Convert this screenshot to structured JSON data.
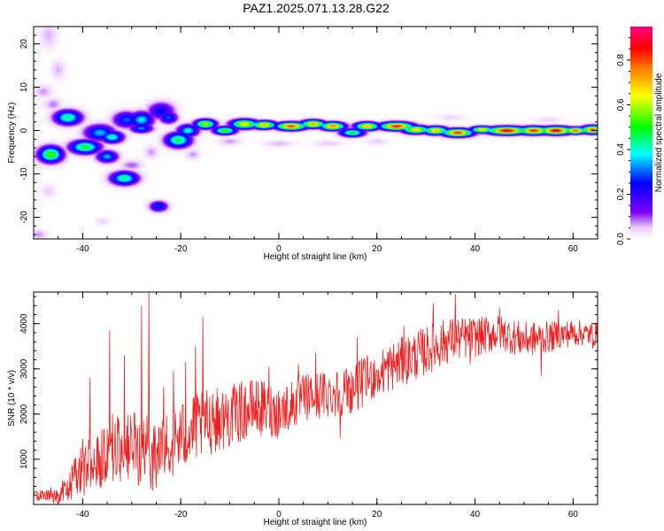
{
  "title": "PAZ1.2025.071.13.28.G22",
  "chart_data": [
    {
      "type": "heatmap",
      "xlabel": "Height of straight line (km)",
      "ylabel": "Frequency (Hz)",
      "xlim": [
        -50,
        65
      ],
      "ylim": [
        -25,
        24
      ],
      "xticks": [
        "-40",
        "-20",
        "0",
        "20",
        "40",
        "60"
      ],
      "yticks": [
        "-20",
        "-10",
        "0",
        "10",
        "20"
      ],
      "colorbar": {
        "label": "Normalized spectral amplitude",
        "range": [
          0,
          0.95
        ],
        "ticks": [
          "0.0",
          "0.2",
          "0.4",
          "0.6",
          "0.8"
        ],
        "colors": [
          "#ffffff",
          "#8000ff",
          "#0000ff",
          "#00ffff",
          "#00ff00",
          "#ffff00",
          "#ff8000",
          "#ff0000",
          "#ff0080"
        ]
      },
      "blobs": [
        {
          "x": -46.5,
          "y": -5.5,
          "sx": 1.6,
          "sy": 1.2,
          "a": 0.55
        },
        {
          "x": -43,
          "y": 3,
          "sx": 1.8,
          "sy": 1.1,
          "a": 0.45
        },
        {
          "x": -39.5,
          "y": -3.8,
          "sx": 2.0,
          "sy": 1.0,
          "a": 0.5
        },
        {
          "x": -36.5,
          "y": -0.5,
          "sx": 2.0,
          "sy": 1.2,
          "a": 0.35
        },
        {
          "x": -35,
          "y": -6,
          "sx": 1.4,
          "sy": 0.9,
          "a": 0.35
        },
        {
          "x": -34,
          "y": -1.5,
          "sx": 1.5,
          "sy": 0.9,
          "a": 0.42
        },
        {
          "x": -31.5,
          "y": -11,
          "sx": 1.8,
          "sy": 1.0,
          "a": 0.45
        },
        {
          "x": -31,
          "y": 2.5,
          "sx": 1.8,
          "sy": 1.2,
          "a": 0.3
        },
        {
          "x": -28,
          "y": 2.5,
          "sx": 1.6,
          "sy": 1.2,
          "a": 0.38
        },
        {
          "x": -28,
          "y": 0.5,
          "sx": 1.5,
          "sy": 0.7,
          "a": 0.32
        },
        {
          "x": -24.5,
          "y": -17.5,
          "sx": 1.2,
          "sy": 0.8,
          "a": 0.28
        },
        {
          "x": -24,
          "y": 4.5,
          "sx": 1.8,
          "sy": 1.3,
          "a": 0.25
        },
        {
          "x": -22.5,
          "y": 3,
          "sx": 1.2,
          "sy": 0.9,
          "a": 0.3
        },
        {
          "x": -20.5,
          "y": -2.2,
          "sx": 1.7,
          "sy": 1.1,
          "a": 0.48
        },
        {
          "x": -18.5,
          "y": 0,
          "sx": 1.4,
          "sy": 0.9,
          "a": 0.4
        },
        {
          "x": -15,
          "y": 1.5,
          "sx": 1.4,
          "sy": 0.7,
          "a": 0.62
        },
        {
          "x": -11,
          "y": 0,
          "sx": 1.5,
          "sy": 0.6,
          "a": 0.55
        },
        {
          "x": -7,
          "y": 1.5,
          "sx": 1.8,
          "sy": 0.7,
          "a": 0.68
        },
        {
          "x": -3,
          "y": 1.3,
          "sx": 1.6,
          "sy": 0.6,
          "a": 0.72
        },
        {
          "x": 2.5,
          "y": 1,
          "sx": 2.0,
          "sy": 0.6,
          "a": 0.82
        },
        {
          "x": 7,
          "y": 1.5,
          "sx": 1.6,
          "sy": 0.6,
          "a": 0.75
        },
        {
          "x": 11,
          "y": 1,
          "sx": 1.6,
          "sy": 0.6,
          "a": 0.78
        },
        {
          "x": 15,
          "y": -0.5,
          "sx": 1.6,
          "sy": 0.6,
          "a": 0.5
        },
        {
          "x": 18,
          "y": 1,
          "sx": 1.6,
          "sy": 0.6,
          "a": 0.72
        },
        {
          "x": 24,
          "y": 1,
          "sx": 2.2,
          "sy": 0.6,
          "a": 0.86
        },
        {
          "x": 28,
          "y": 0.2,
          "sx": 1.8,
          "sy": 0.6,
          "a": 0.7
        },
        {
          "x": 32,
          "y": 0,
          "sx": 1.6,
          "sy": 0.6,
          "a": 0.72
        },
        {
          "x": 36.5,
          "y": -0.5,
          "sx": 2.0,
          "sy": 0.6,
          "a": 0.84
        },
        {
          "x": 41.5,
          "y": 0.2,
          "sx": 1.5,
          "sy": 0.5,
          "a": 0.7
        },
        {
          "x": 46.5,
          "y": 0,
          "sx": 2.6,
          "sy": 0.6,
          "a": 0.9
        },
        {
          "x": 52,
          "y": 0,
          "sx": 2.0,
          "sy": 0.6,
          "a": 0.85
        },
        {
          "x": 56.5,
          "y": 0,
          "sx": 2.2,
          "sy": 0.6,
          "a": 0.9
        },
        {
          "x": 60.5,
          "y": 0,
          "sx": 1.5,
          "sy": 0.5,
          "a": 0.8
        },
        {
          "x": 64,
          "y": 0.2,
          "sx": 1.5,
          "sy": 0.6,
          "a": 0.82
        }
      ],
      "faint": [
        {
          "x": -47,
          "y": 22,
          "sx": 1.2,
          "sy": 2.0,
          "a": 0.06
        },
        {
          "x": -45,
          "y": 14,
          "sx": 1.0,
          "sy": 1.5,
          "a": 0.06
        },
        {
          "x": -48,
          "y": 9,
          "sx": 1.2,
          "sy": 1.0,
          "a": 0.07
        },
        {
          "x": -46,
          "y": 6,
          "sx": 1.2,
          "sy": 1.0,
          "a": 0.08
        },
        {
          "x": -47,
          "y": -14,
          "sx": 1.0,
          "sy": 1.0,
          "a": 0.05
        },
        {
          "x": -49,
          "y": -24,
          "sx": 1.2,
          "sy": 0.8,
          "a": 0.07
        },
        {
          "x": -36,
          "y": -21,
          "sx": 1.0,
          "sy": 0.6,
          "a": 0.04
        },
        {
          "x": -30,
          "y": -8,
          "sx": 1.5,
          "sy": 0.8,
          "a": 0.09
        },
        {
          "x": -26,
          "y": -5,
          "sx": 1.0,
          "sy": 1.0,
          "a": 0.07
        },
        {
          "x": -17.5,
          "y": -5.5,
          "sx": 1.0,
          "sy": 0.8,
          "a": 0.07
        },
        {
          "x": -10,
          "y": -2.5,
          "sx": 1.5,
          "sy": 0.6,
          "a": 0.07
        },
        {
          "x": 0,
          "y": -3,
          "sx": 2.0,
          "sy": 0.5,
          "a": 0.06
        },
        {
          "x": 10,
          "y": -3,
          "sx": 2.0,
          "sy": 0.5,
          "a": 0.05
        },
        {
          "x": 20,
          "y": -2.5,
          "sx": 1.5,
          "sy": 0.5,
          "a": 0.05
        },
        {
          "x": 35,
          "y": 3,
          "sx": 2.0,
          "sy": 0.5,
          "a": 0.04
        },
        {
          "x": 55,
          "y": 2.5,
          "sx": 2.0,
          "sy": 0.5,
          "a": 0.04
        }
      ]
    },
    {
      "type": "line",
      "xlabel": "Height of straight line (km)",
      "ylabel": "SNR (10 * v/v)",
      "xlim": [
        -50,
        65
      ],
      "ylim": [
        0,
        4700
      ],
      "xticks": [
        "-40",
        "-20",
        "0",
        "20",
        "40",
        "60"
      ],
      "yticks": [
        "1000",
        "2000",
        "3000",
        "4000"
      ],
      "color": "#ee2020",
      "trend_x": [
        -50,
        -46,
        -43,
        -40,
        -35,
        -30,
        -25,
        -20,
        -15,
        -10,
        -5,
        0,
        5,
        10,
        15,
        20,
        25,
        30,
        35,
        40,
        45,
        50,
        55,
        60,
        65
      ],
      "trend_y": [
        200,
        180,
        350,
        850,
        1200,
        1250,
        1100,
        1500,
        1800,
        1950,
        2150,
        2050,
        2350,
        2450,
        2550,
        2900,
        3150,
        3400,
        3650,
        3700,
        3800,
        3650,
        3700,
        3800,
        3750
      ],
      "amp_y": [
        100,
        150,
        300,
        700,
        800,
        800,
        850,
        800,
        750,
        700,
        650,
        600,
        550,
        550,
        550,
        550,
        550,
        550,
        500,
        450,
        400,
        400,
        350,
        300,
        250
      ],
      "spikes": [
        {
          "x": -46.5,
          "y": 380
        },
        {
          "x": -38.5,
          "y": 2800
        },
        {
          "x": -34.5,
          "y": 3850
        },
        {
          "x": -31.5,
          "y": 3300
        },
        {
          "x": -28,
          "y": 4400
        },
        {
          "x": -26.5,
          "y": 4700
        },
        {
          "x": -23.5,
          "y": 2600
        },
        {
          "x": -21.5,
          "y": 2950
        },
        {
          "x": -19,
          "y": 3150
        },
        {
          "x": -17,
          "y": 3500
        },
        {
          "x": -15.5,
          "y": 4150
        },
        {
          "x": -13.5,
          "y": 2450
        },
        {
          "x": -8,
          "y": 2650
        },
        {
          "x": -2,
          "y": 3050
        },
        {
          "x": 2.5,
          "y": 1950
        },
        {
          "x": 4,
          "y": 3100
        },
        {
          "x": 7.5,
          "y": 3350
        },
        {
          "x": 12.5,
          "y": 1480
        },
        {
          "x": 16,
          "y": 3700
        },
        {
          "x": 20.5,
          "y": 2520
        },
        {
          "x": 25.5,
          "y": 3950
        },
        {
          "x": 31.5,
          "y": 4450
        },
        {
          "x": 36,
          "y": 4650
        },
        {
          "x": 39,
          "y": 3100
        },
        {
          "x": 45,
          "y": 4350
        },
        {
          "x": 53.5,
          "y": 2850
        },
        {
          "x": 57,
          "y": 4300
        },
        {
          "x": 64,
          "y": 3450
        }
      ]
    }
  ]
}
